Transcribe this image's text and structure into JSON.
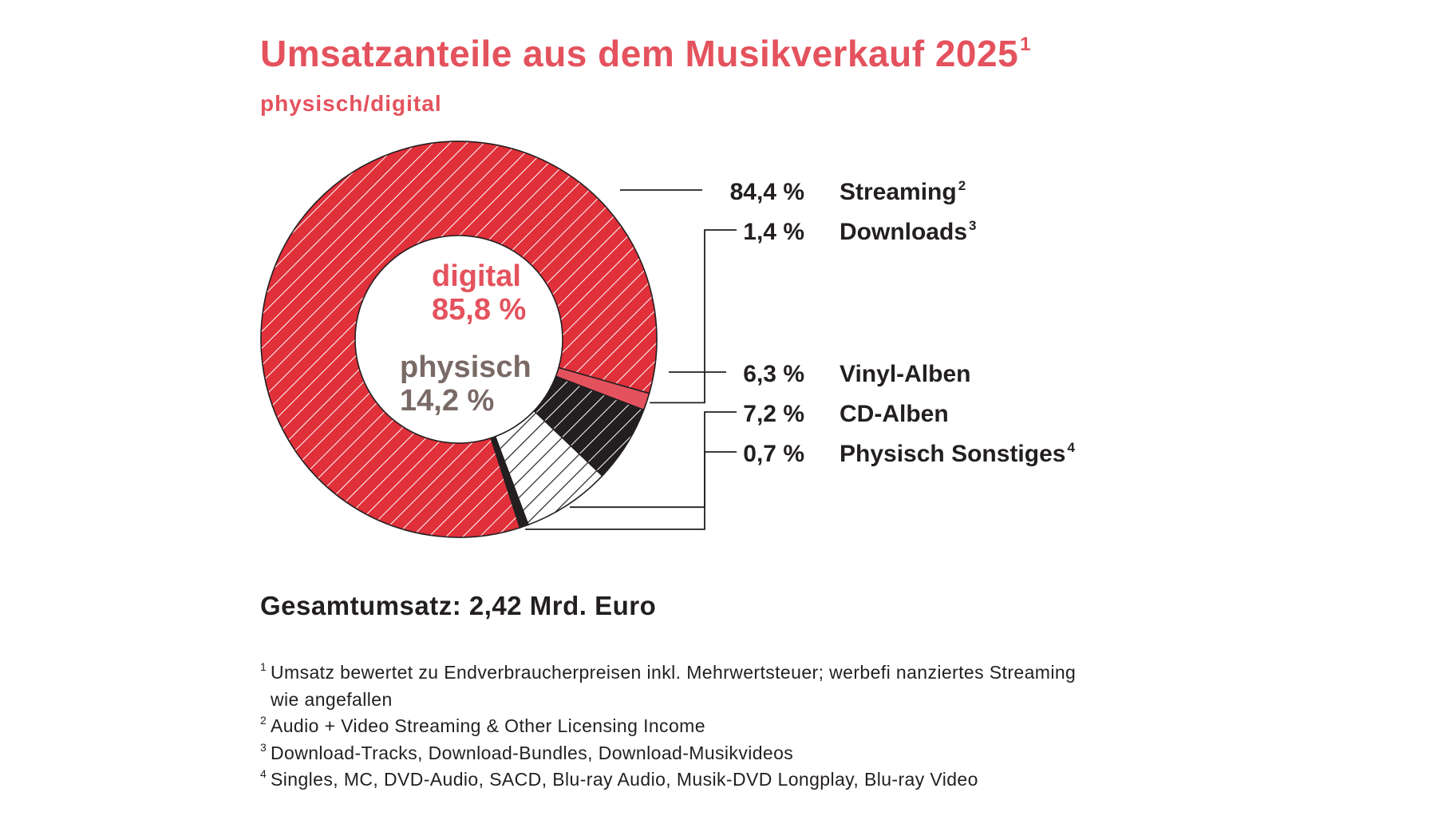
{
  "chart_data": {
    "type": "pie",
    "title": "Umsatzanteile aus dem Musikverkauf 2025",
    "title_note": "1",
    "subtitle": "physisch/digital",
    "slices": [
      {
        "label": "Streaming",
        "note": "2",
        "value": 84.4,
        "value_text": "84,4 %",
        "group": "digital",
        "color": "#e0303a",
        "pattern": "white-hatch"
      },
      {
        "label": "Downloads",
        "note": "3",
        "value": 1.4,
        "value_text": "1,4 %",
        "group": "digital",
        "color": "#e4525d",
        "pattern": "solid"
      },
      {
        "label": "Vinyl-Alben",
        "note": "",
        "value": 6.3,
        "value_text": "6,3 %",
        "group": "physisch",
        "color": "#231f20",
        "pattern": "white-hatch"
      },
      {
        "label": "CD-Alben",
        "note": "",
        "value": 7.2,
        "value_text": "7,2 %",
        "group": "physisch",
        "color": "#ffffff",
        "pattern": "black-hatch"
      },
      {
        "label": "Physisch Sonstiges",
        "note": "4",
        "value": 0.7,
        "value_text": "0,7 %",
        "group": "physisch",
        "color": "#231f20",
        "pattern": "solid"
      }
    ],
    "groups": [
      {
        "name": "digital",
        "value": 85.8,
        "value_text": "85,8 %",
        "color": "#e4525d"
      },
      {
        "name": "physisch",
        "value": 14.2,
        "value_text": "14,2 %",
        "color": "#7a6a66"
      }
    ],
    "legend": "right"
  },
  "total": "Gesamtumsatz: 2,42 Mrd. Euro",
  "footnotes": [
    {
      "mark": "1",
      "text": "Umsatz bewertet zu Endverbraucherpreisen inkl. Mehrwertsteuer; werbefi nanziertes Streaming",
      "cont": "wie angefallen"
    },
    {
      "mark": "2",
      "text": "Audio + Video Streaming & Other Licensing Income",
      "cont": ""
    },
    {
      "mark": "3",
      "text": "Download-Tracks, Download-Bundles, Download-Musikvideos",
      "cont": ""
    },
    {
      "mark": "4",
      "text": "Singles, MC, DVD-Audio, SACD, Blu-ray Audio, Musik-DVD Longplay, Blu-ray Video",
      "cont": ""
    }
  ],
  "colors": {
    "accent": "#e4525d",
    "dark": "#231f20",
    "physisch_text": "#7a6a66"
  }
}
